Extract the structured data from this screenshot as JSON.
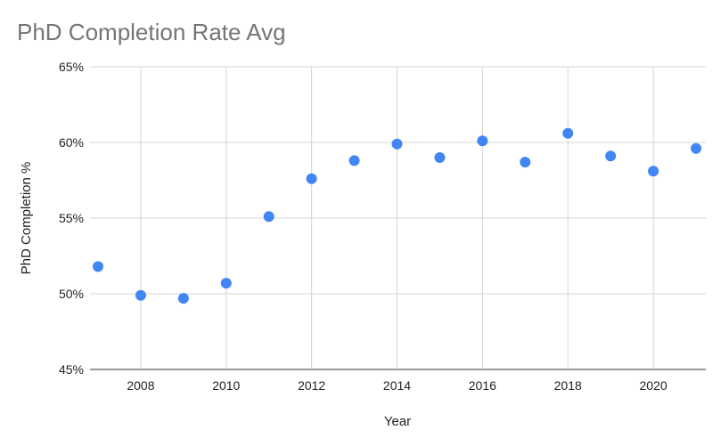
{
  "chart_data": {
    "type": "scatter",
    "title": "PhD Completion Rate Avg",
    "xlabel": "Year",
    "ylabel": "PhD Completion %",
    "x": [
      2007,
      2008,
      2009,
      2010,
      2011,
      2012,
      2013,
      2014,
      2015,
      2016,
      2017,
      2018,
      2019,
      2020,
      2021
    ],
    "y": [
      51.8,
      49.9,
      49.7,
      50.7,
      55.1,
      57.6,
      58.8,
      59.9,
      59.0,
      60.1,
      58.7,
      60.6,
      59.1,
      58.1,
      59.6
    ],
    "xlim": [
      2007,
      2021
    ],
    "ylim": [
      45,
      65
    ],
    "x_ticks": [
      "2008",
      "2010",
      "2012",
      "2014",
      "2016",
      "2018",
      "2020"
    ],
    "y_ticks": [
      "45%",
      "50%",
      "55%",
      "60%",
      "65%"
    ],
    "grid": true,
    "legend": "none",
    "colors": {
      "marker": "#4285F4"
    }
  }
}
